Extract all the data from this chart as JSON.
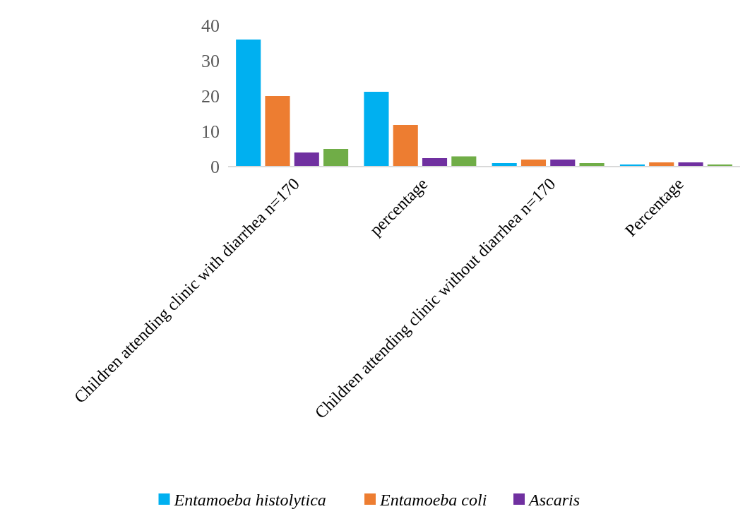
{
  "chart_data": {
    "type": "bar",
    "categories": [
      "Children attending clinic with diarrhea n=170",
      "percentage",
      "Children attending clinic without diarrhea n=170",
      "Percentage"
    ],
    "series": [
      {
        "name": "Entamoeba histolytica",
        "color": "#00b0f0",
        "values": [
          36,
          21.2,
          1,
          0.6
        ]
      },
      {
        "name": "Entamoeba coli",
        "color": "#ed7d31",
        "values": [
          20,
          11.8,
          2,
          1.2
        ]
      },
      {
        "name": "Ascaris",
        "color": "#7030a0",
        "values": [
          4,
          2.4,
          2,
          1.2
        ]
      },
      {
        "color": "#70ad47",
        "values": [
          5,
          2.9,
          1,
          0.6
        ]
      }
    ],
    "ylim": [
      0,
      40
    ],
    "yticks": [
      0,
      10,
      20,
      30,
      40
    ],
    "legend": "bottom"
  }
}
